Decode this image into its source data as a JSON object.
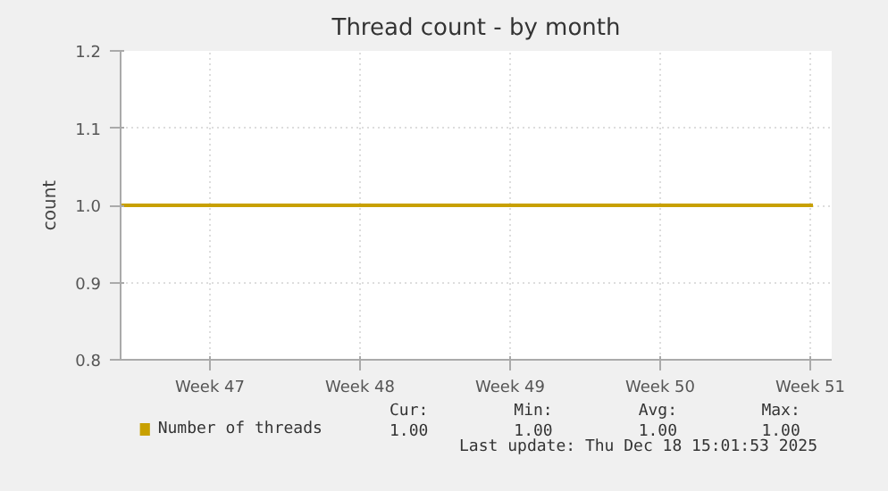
{
  "chart_data": {
    "type": "line",
    "title": "Thread count - by month",
    "ylabel": "count",
    "x": [
      "2025-11-16T08:00",
      "2025-11-25T00:00",
      "2025-12-05T00:00",
      "2025-12-18T15:00"
    ],
    "series": [
      {
        "name": "Number of threads",
        "color": "#c8a000",
        "values": [
          1.0,
          1.0,
          1.0,
          1.0
        ]
      }
    ],
    "xlim": [
      "2025-11-16T08:00",
      "2025-12-19T12:00"
    ],
    "xticks": [
      {
        "value": "2025-11-20T12:00",
        "label": "Week 47"
      },
      {
        "value": "2025-11-27T12:00",
        "label": "Week 48"
      },
      {
        "value": "2025-12-04T12:00",
        "label": "Week 49"
      },
      {
        "value": "2025-12-11T12:00",
        "label": "Week 50"
      },
      {
        "value": "2025-12-18T12:00",
        "label": "Week 51"
      }
    ],
    "ylim": [
      0.8,
      1.2
    ],
    "yticks": [
      0.8,
      0.9,
      {
        "value": 1.0,
        "label": "1.0"
      },
      1.1,
      1.2
    ],
    "grid": true,
    "legend": "bottom",
    "annotations": [
      "Cur:",
      "Min:",
      "Avg:",
      "Max:",
      "1.00",
      "1.00",
      "1.00",
      "1.00",
      "Last update: Thu Dec 18 15:01:53 2025"
    ]
  }
}
